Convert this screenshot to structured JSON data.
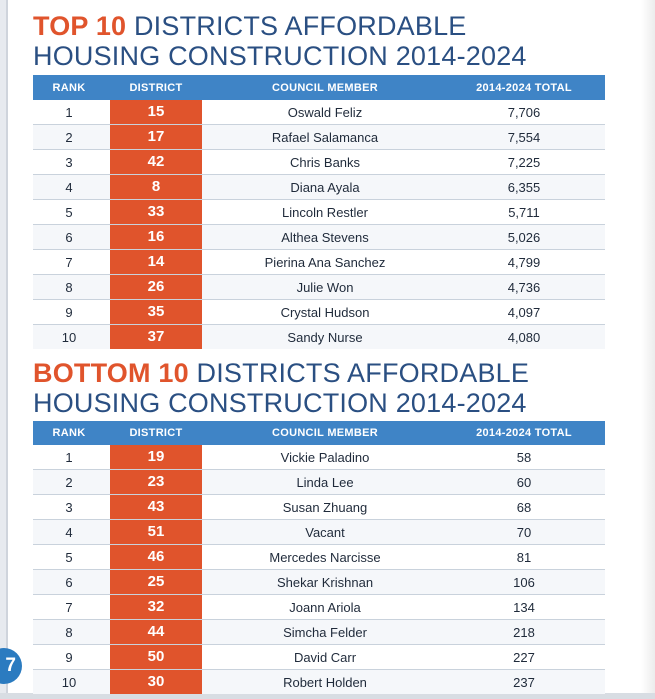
{
  "top": {
    "title_accent": "TOP 10",
    "title_line1_rest": " DISTRICTS AFFORDABLE",
    "title_line2": "HOUSING CONSTRUCTION 2014-2024",
    "headers": {
      "rank": "RANK",
      "district": "DISTRICT",
      "member": "COUNCIL MEMBER",
      "total": "2014-2024 TOTAL"
    },
    "rows": [
      {
        "rank": "1",
        "district": "15",
        "member": "Oswald Feliz",
        "total": "7,706"
      },
      {
        "rank": "2",
        "district": "17",
        "member": "Rafael Salamanca",
        "total": "7,554"
      },
      {
        "rank": "3",
        "district": "42",
        "member": "Chris Banks",
        "total": "7,225"
      },
      {
        "rank": "4",
        "district": "8",
        "member": "Diana Ayala",
        "total": "6,355"
      },
      {
        "rank": "5",
        "district": "33",
        "member": "Lincoln Restler",
        "total": "5,711"
      },
      {
        "rank": "6",
        "district": "16",
        "member": "Althea Stevens",
        "total": "5,026"
      },
      {
        "rank": "7",
        "district": "14",
        "member": "Pierina Ana Sanchez",
        "total": "4,799"
      },
      {
        "rank": "8",
        "district": "26",
        "member": "Julie Won",
        "total": "4,736"
      },
      {
        "rank": "9",
        "district": "35",
        "member": "Crystal Hudson",
        "total": "4,097"
      },
      {
        "rank": "10",
        "district": "37",
        "member": "Sandy Nurse",
        "total": "4,080"
      }
    ]
  },
  "bottom": {
    "title_accent": "BOTTOM 10",
    "title_line1_rest": " DISTRICTS AFFORDABLE",
    "title_line2": "HOUSING CONSTRUCTION 2014-2024",
    "headers": {
      "rank": "RANK",
      "district": "DISTRICT",
      "member": "COUNCIL MEMBER",
      "total": "2014-2024 TOTAL"
    },
    "rows": [
      {
        "rank": "1",
        "district": "19",
        "member": "Vickie Paladino",
        "total": "58"
      },
      {
        "rank": "2",
        "district": "23",
        "member": "Linda Lee",
        "total": "60"
      },
      {
        "rank": "3",
        "district": "43",
        "member": "Susan Zhuang",
        "total": "68"
      },
      {
        "rank": "4",
        "district": "51",
        "member": "Vacant",
        "total": "70"
      },
      {
        "rank": "5",
        "district": "46",
        "member": "Mercedes Narcisse",
        "total": "81"
      },
      {
        "rank": "6",
        "district": "25",
        "member": "Shekar Krishnan",
        "total": "106"
      },
      {
        "rank": "7",
        "district": "32",
        "member": "Joann Ariola",
        "total": "134"
      },
      {
        "rank": "8",
        "district": "44",
        "member": "Simcha Felder",
        "total": "218"
      },
      {
        "rank": "9",
        "district": "50",
        "member": "David Carr",
        "total": "227"
      },
      {
        "rank": "10",
        "district": "30",
        "member": "Robert Holden",
        "total": "237"
      }
    ]
  },
  "page_number": "7",
  "colors": {
    "accent": "#e0542c",
    "heading": "#2a4f82",
    "header_bar": "#3f84c6",
    "page_badge": "#2b7bc0"
  }
}
